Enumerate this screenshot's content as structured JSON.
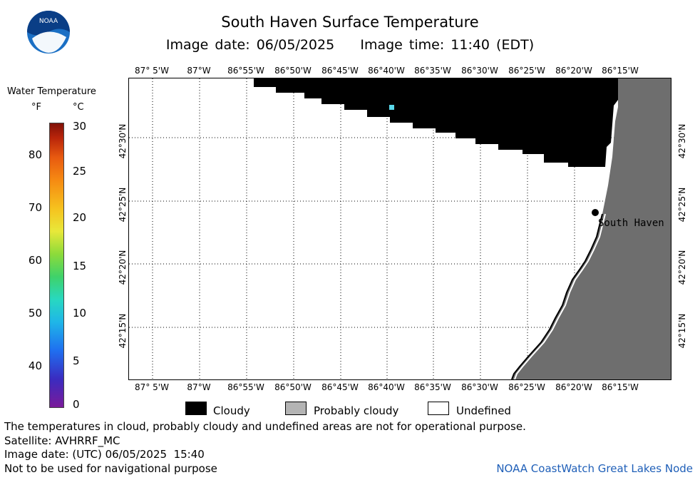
{
  "header": {
    "title": "South Haven Surface Temperature",
    "subtitle": "Image date: 06/05/2025    Image time: 11:40 (EDT)"
  },
  "logo": {
    "text": "NOAA"
  },
  "colorbar": {
    "title": "Water Temperature",
    "unit_f": "°F",
    "unit_c": "°C",
    "f_ticks": [
      "80",
      "70",
      "60",
      "50",
      "40"
    ],
    "c_ticks": [
      "30",
      "25",
      "20",
      "15",
      "10",
      "5",
      "0"
    ]
  },
  "map": {
    "lon_labels": [
      "87° 5'W",
      "87°W",
      "86°55'W",
      "86°50'W",
      "86°45'W",
      "86°40'W",
      "86°35'W",
      "86°30'W",
      "86°25'W",
      "86°20'W",
      "86°15'W"
    ],
    "lat_labels": [
      "42°30'N",
      "42°25'N",
      "42°20'N",
      "42°15'N"
    ],
    "place_label": "South Haven",
    "colors": {
      "cloud": "#000000",
      "land": "#6e6e6e",
      "undefined": "#ffffff",
      "pixel": "#5ad8ea"
    }
  },
  "legend": {
    "cloudy": "Cloudy",
    "probably_cloudy": "Probably cloudy",
    "undefined": "Undefined"
  },
  "footer": {
    "line1": "The temperatures in cloud, probably cloudy and undefined areas are not for operational purpose.",
    "line2": "Satellite: AVHRRF_MC",
    "line3": "Image date: (UTC) 06/05/2025  15:40",
    "line4": "Not to be used for navigational purpose",
    "credit": "NOAA CoastWatch Great Lakes Node"
  }
}
